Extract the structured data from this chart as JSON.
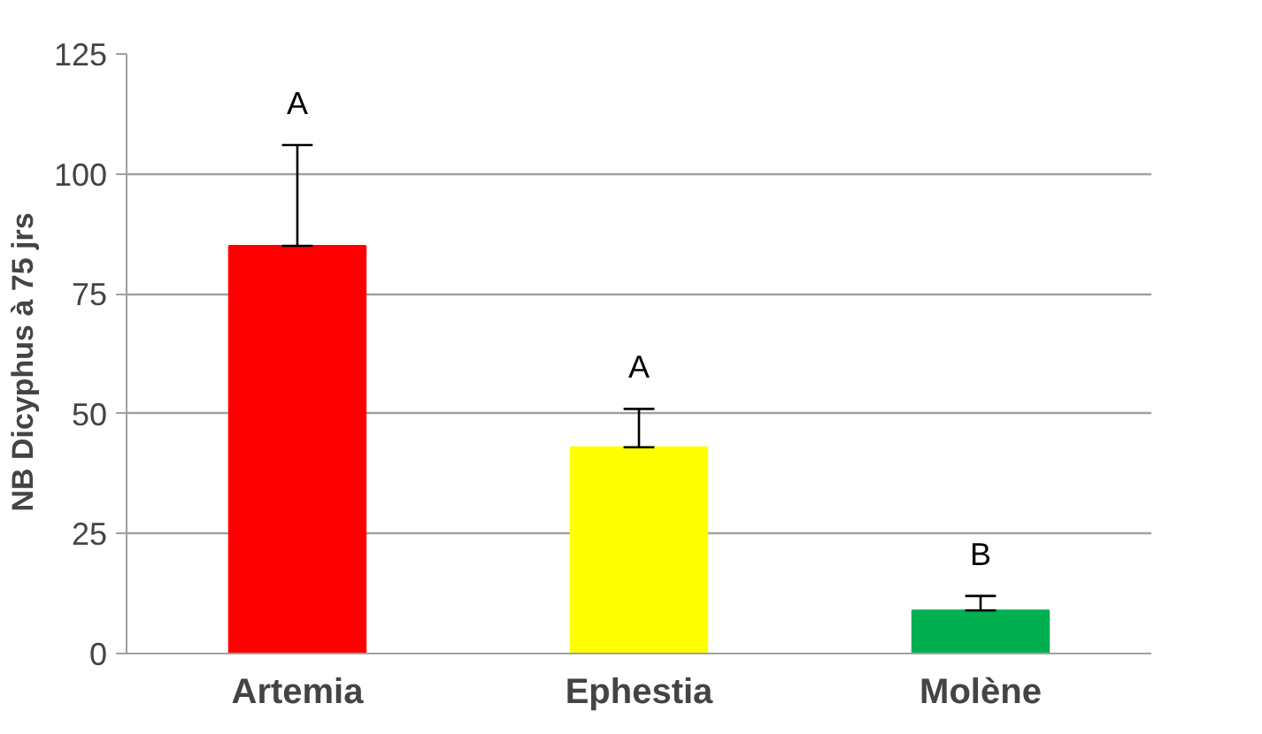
{
  "chart_data": {
    "type": "bar",
    "ylabel": "NB  Dicyphus  à 75 jrs",
    "categories": [
      "Artemia",
      "Ephestia",
      "Molène"
    ],
    "values": [
      85,
      43,
      9
    ],
    "colors": [
      "#ff0000",
      "#ffff00",
      "#00b050"
    ],
    "errors": [
      [
        85,
        106
      ],
      [
        43,
        51
      ],
      [
        9,
        12
      ]
    ],
    "ylim": [
      0,
      125
    ],
    "yticks": [
      0,
      25,
      50,
      75,
      100,
      125
    ],
    "grid": "y",
    "annotations": [
      "A",
      "A",
      "B"
    ]
  }
}
